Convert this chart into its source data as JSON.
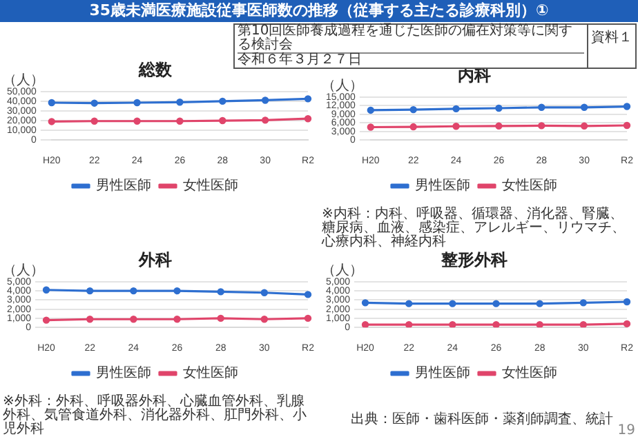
{
  "chart_data": [
    {
      "type": "line",
      "title": "総数",
      "ylabel": "（人）",
      "categories": [
        "H20",
        "22",
        "24",
        "26",
        "28",
        "30",
        "R2"
      ],
      "series": [
        {
          "name": "男性医師",
          "color": "#2e6fd0",
          "values": [
            38500,
            38000,
            38500,
            39000,
            40000,
            41000,
            42500
          ]
        },
        {
          "name": "女性医師",
          "color": "#e0456b",
          "values": [
            19000,
            19500,
            19500,
            19500,
            20000,
            20500,
            22000
          ]
        }
      ],
      "ylim": [
        0,
        50000
      ],
      "yticks": [
        {
          "value": 0,
          "label": "0"
        },
        {
          "value": 10000,
          "label": "10,000"
        },
        {
          "value": 20000,
          "label": "20,000"
        },
        {
          "value": 30000,
          "label": "30,000"
        },
        {
          "value": 40000,
          "label": "40,000"
        },
        {
          "value": 50000,
          "label": "50,000"
        }
      ],
      "grid": "y",
      "legend": "bottom",
      "marker": "circle"
    },
    {
      "type": "line",
      "title": "内科",
      "ylabel": "（人）",
      "categories": [
        "H20",
        "22",
        "24",
        "26",
        "28",
        "30",
        "R2"
      ],
      "series": [
        {
          "name": "男性医師",
          "color": "#2e6fd0",
          "values": [
            10400,
            10600,
            10900,
            11100,
            11400,
            11400,
            11700
          ]
        },
        {
          "name": "女性医師",
          "color": "#e0456b",
          "values": [
            4500,
            4600,
            4800,
            4900,
            5000,
            4900,
            5100
          ]
        }
      ],
      "ylim": [
        0,
        15000
      ],
      "yticks": [
        {
          "value": 0,
          "label": "0"
        },
        {
          "value": 3000,
          "label": "3,000"
        },
        {
          "value": 6000,
          "label": "6,000"
        },
        {
          "value": 9000,
          "label": "9,000"
        },
        {
          "value": 12000,
          "label": "12,000"
        },
        {
          "value": 15000,
          "label": "15,000"
        }
      ],
      "grid": "y",
      "legend": "bottom",
      "marker": "circle",
      "annotations": [
        "※内科：内科、呼吸器、循環器、消化器、腎臓、糖尿病、血液、感染症、アレルギー、リウマチ、心療内科、神経内科"
      ]
    },
    {
      "type": "line",
      "title": "外科",
      "ylabel": "（人）",
      "categories": [
        "H20",
        "22",
        "24",
        "26",
        "28",
        "30",
        "R2"
      ],
      "series": [
        {
          "name": "男性医師",
          "color": "#2e6fd0",
          "values": [
            4100,
            4000,
            4000,
            4000,
            3900,
            3800,
            3600
          ]
        },
        {
          "name": "女性医師",
          "color": "#e0456b",
          "values": [
            800,
            900,
            900,
            900,
            1000,
            900,
            1000
          ]
        }
      ],
      "ylim": [
        0,
        5000
      ],
      "yticks": [
        {
          "value": 0,
          "label": "0"
        },
        {
          "value": 1000,
          "label": "1,000"
        },
        {
          "value": 2000,
          "label": "2,000"
        },
        {
          "value": 3000,
          "label": "3,000"
        },
        {
          "value": 4000,
          "label": "4,000"
        },
        {
          "value": 5000,
          "label": "5,000"
        }
      ],
      "grid": "y",
      "legend": "bottom",
      "marker": "circle",
      "annotations": [
        "※外科：外科、呼吸器外科、心臓血管外科、乳腺外科、気管食道外科、消化器外科、肛門外科、小児外科"
      ]
    },
    {
      "type": "line",
      "title": "整形外科",
      "ylabel": "（人）",
      "categories": [
        "H20",
        "22",
        "24",
        "26",
        "28",
        "30",
        "R2"
      ],
      "series": [
        {
          "name": "男性医師",
          "color": "#2e6fd0",
          "values": [
            2700,
            2600,
            2600,
            2600,
            2600,
            2700,
            2800
          ]
        },
        {
          "name": "女性医師",
          "color": "#e0456b",
          "values": [
            300,
            300,
            300,
            300,
            300,
            300,
            400
          ]
        }
      ],
      "ylim": [
        0,
        5000
      ],
      "yticks": [
        {
          "value": 0,
          "label": "0"
        },
        {
          "value": 1000,
          "label": "1,000"
        },
        {
          "value": 2000,
          "label": "2,000"
        },
        {
          "value": 3000,
          "label": "3,000"
        },
        {
          "value": 4000,
          "label": "4,000"
        },
        {
          "value": 5000,
          "label": "5,000"
        }
      ],
      "grid": "y",
      "legend": "bottom",
      "marker": "circle"
    },
    {
      "type": "other",
      "title": "35歳未満医療施設従事医師数の推移（従事する主たる診療科別）①",
      "annotations": [
        "第10回医師養成過程を通じた医師の偏在対策等に関する検討会",
        "令和６年３月２７日",
        "資料１",
        "出典：医師・歯科医師・薬剤師調査、統計",
        "19"
      ]
    }
  ]
}
